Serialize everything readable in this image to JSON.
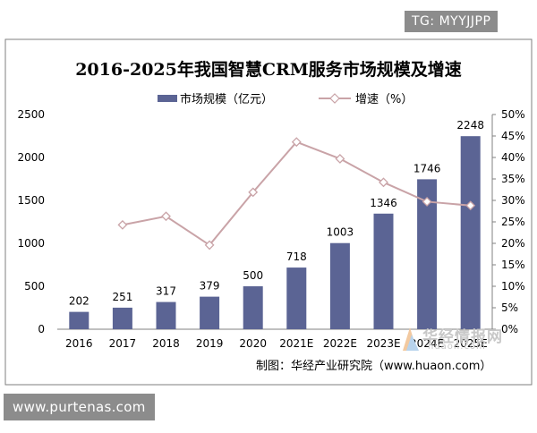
{
  "watermark_tag": "TG: MYYJJPP",
  "footer_tag": "www.purtenas.com",
  "source_note": "制图：华经产业研究院（www.huaon.com）",
  "logo_watermark": {
    "name": "华经情报网",
    "domain": "huaon.com"
  },
  "colors": {
    "bar": "#5b6494",
    "line": "#c9a3a7",
    "marker_fill": "#ffffff",
    "axis": "#808080",
    "frame": "#7f7f7f",
    "text": "#000000"
  },
  "chart_data": {
    "type": "bar",
    "title": "2016-2025年我国智慧CRM服务市场规模及增速",
    "categories": [
      "2016",
      "2017",
      "2018",
      "2019",
      "2020",
      "2021E",
      "2022E",
      "2023E",
      "2024E",
      "2025E"
    ],
    "series": [
      {
        "name": "市场规模（亿元）",
        "type": "bar",
        "axis": "left",
        "values": [
          202,
          251,
          317,
          379,
          500,
          718,
          1003,
          1346,
          1746,
          2248
        ],
        "labels": [
          "202",
          "251",
          "317",
          "379",
          "500",
          "718",
          "1003",
          "1346",
          "1746",
          "2248"
        ]
      },
      {
        "name": "增速（%）",
        "type": "line",
        "axis": "right",
        "values": [
          null,
          24.3,
          26.3,
          19.6,
          31.9,
          43.6,
          39.7,
          34.2,
          29.7,
          28.8
        ]
      }
    ],
    "y_left": {
      "min": 0,
      "max": 2500,
      "ticks": [
        "0",
        "500",
        "1000",
        "1500",
        "2000",
        "2500"
      ]
    },
    "y_right": {
      "min": 0,
      "max": 50,
      "ticks": [
        "0%",
        "5%",
        "10%",
        "15%",
        "20%",
        "25%",
        "30%",
        "35%",
        "40%",
        "45%",
        "50%"
      ]
    },
    "legend_position": "top-center",
    "grid": false
  }
}
